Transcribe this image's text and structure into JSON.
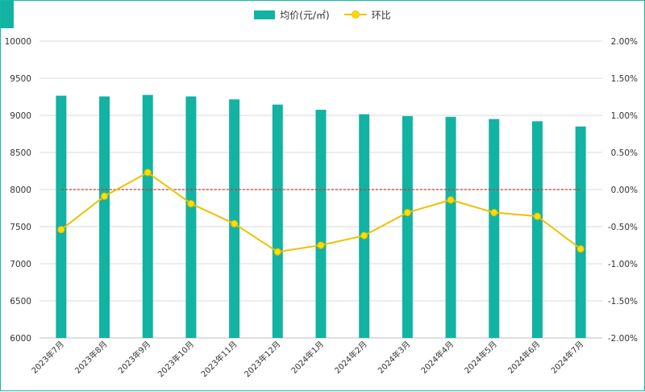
{
  "chart_data": {
    "type": "bar",
    "categories": [
      "2023年7月",
      "2023年8月",
      "2023年9月",
      "2023年10月",
      "2023年11月",
      "2023年12月",
      "2024年1月",
      "2024年2月",
      "2024年3月",
      "2024年4月",
      "2024年5月",
      "2024年6月",
      "2024年7月"
    ],
    "series": [
      {
        "name": "均价(元/㎡)",
        "type": "bar",
        "axis": "left",
        "color": "#12b3a3",
        "values": [
          9265,
          9255,
          9275,
          9255,
          9215,
          9145,
          9075,
          9015,
          8990,
          8980,
          8950,
          8920,
          8850
        ]
      },
      {
        "name": "环比",
        "type": "line",
        "axis": "right",
        "color": "#f0c000",
        "values": [
          -0.54,
          -0.09,
          0.23,
          -0.19,
          -0.46,
          -0.84,
          -0.75,
          -0.62,
          -0.31,
          -0.14,
          -0.31,
          -0.36,
          -0.8
        ]
      }
    ],
    "left_axis": {
      "ylim": [
        6000,
        10000
      ],
      "ticks": [
        "6000",
        "6500",
        "7000",
        "7500",
        "8000",
        "8500",
        "9000",
        "9500",
        "10000"
      ],
      "tick_values": [
        6000,
        6500,
        7000,
        7500,
        8000,
        8500,
        9000,
        9500,
        10000
      ]
    },
    "right_axis": {
      "ylim": [
        -2.0,
        2.0
      ],
      "ticks": [
        "-2.00%",
        "-1.50%",
        "-1.00%",
        "-0.50%",
        "0.00%",
        "0.50%",
        "1.00%",
        "1.50%",
        "2.00%"
      ],
      "tick_values": [
        -2.0,
        -1.5,
        -1.0,
        -0.5,
        0.0,
        0.5,
        1.0,
        1.5,
        2.0
      ]
    },
    "reference_line": {
      "axis": "right",
      "value": 0.0,
      "color": "#d9342b",
      "style": "dashed"
    },
    "grid": true,
    "legend_position": "top-center"
  }
}
